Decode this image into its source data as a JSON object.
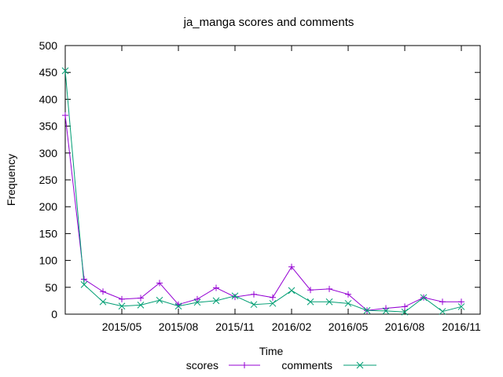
{
  "chart_data": {
    "type": "line",
    "title": "ja_manga scores and comments",
    "xlabel": "Time",
    "ylabel": "Frequency",
    "ylim": [
      0,
      500
    ],
    "yticks": [
      0,
      50,
      100,
      150,
      200,
      250,
      300,
      350,
      400,
      450,
      500
    ],
    "xlim": [
      "2015-02",
      "2016-12"
    ],
    "xticks": [
      {
        "x": "2015-05",
        "label": "2015/05"
      },
      {
        "x": "2015-08",
        "label": "2015/08"
      },
      {
        "x": "2015-11",
        "label": "2015/11"
      },
      {
        "x": "2016-02",
        "label": "2016/02"
      },
      {
        "x": "2016-05",
        "label": "2016/05"
      },
      {
        "x": "2016-08",
        "label": "2016/08"
      },
      {
        "x": "2016-11",
        "label": "2016/11"
      }
    ],
    "grid": false,
    "legend": "bottom",
    "x": [
      "2015-02",
      "2015-03",
      "2015-04",
      "2015-05",
      "2015-06",
      "2015-07",
      "2015-08",
      "2015-09",
      "2015-10",
      "2015-11",
      "2015-12",
      "2016-01",
      "2016-02",
      "2016-03",
      "2016-04",
      "2016-05",
      "2016-06",
      "2016-07",
      "2016-08",
      "2016-09",
      "2016-10",
      "2016-11",
      "2016-12"
    ],
    "series": [
      {
        "name": "scores",
        "color": "#9400d3",
        "marker": "+",
        "values": [
          370,
          65,
          42,
          28,
          30,
          58,
          18,
          28,
          49,
          32,
          37,
          31,
          88,
          45,
          47,
          37,
          7,
          11,
          14,
          31,
          23,
          23,
          null
        ]
      },
      {
        "name": "comments",
        "color": "#009e73",
        "marker": "x",
        "values": [
          453,
          55,
          23,
          15,
          17,
          26,
          15,
          22,
          25,
          34,
          18,
          20,
          44,
          23,
          23,
          20,
          7,
          6,
          4,
          31,
          5,
          14,
          null
        ]
      }
    ]
  }
}
